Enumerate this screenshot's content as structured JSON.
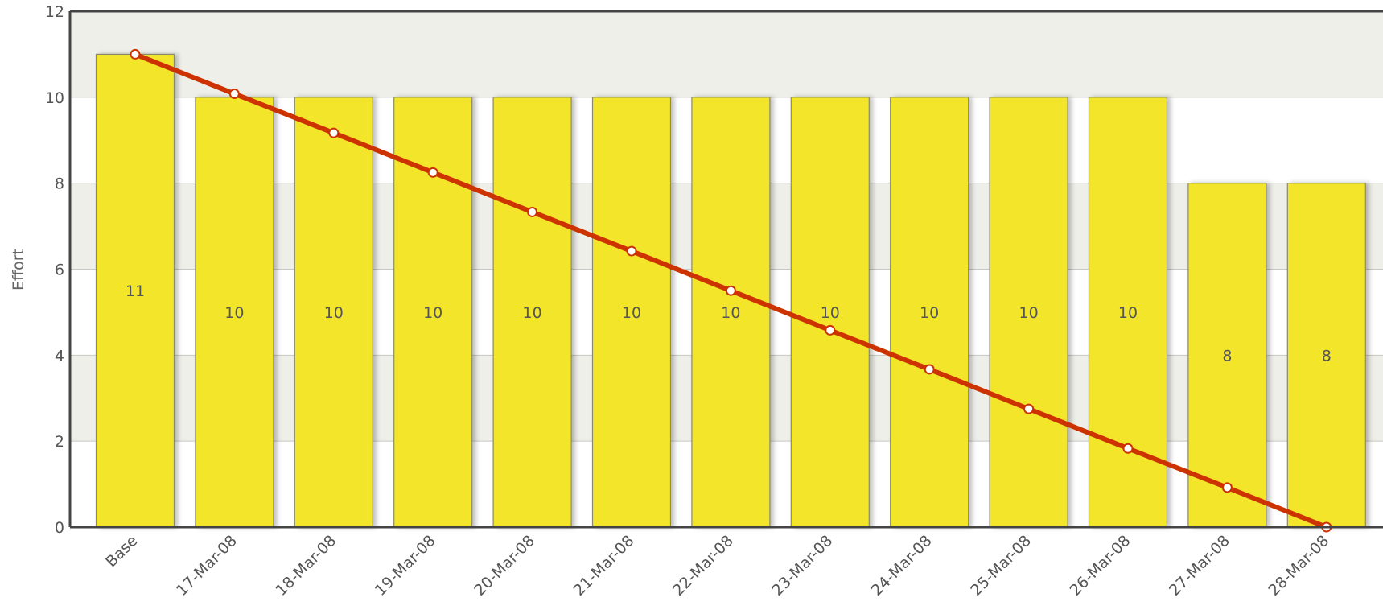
{
  "chart_data": {
    "type": "bar",
    "title": "",
    "xlabel": "",
    "ylabel": "Effort",
    "ylim": [
      0,
      12
    ],
    "yticks": [
      0,
      2,
      4,
      6,
      8,
      10,
      12
    ],
    "categories": [
      "Base",
      "17-Mar-08",
      "18-Mar-08",
      "19-Mar-08",
      "20-Mar-08",
      "21-Mar-08",
      "22-Mar-08",
      "23-Mar-08",
      "24-Mar-08",
      "25-Mar-08",
      "26-Mar-08",
      "27-Mar-08",
      "28-Mar-08"
    ],
    "series": [
      {
        "type": "bar",
        "values": [
          11,
          10,
          10,
          10,
          10,
          10,
          10,
          10,
          10,
          10,
          10,
          8,
          8
        ]
      },
      {
        "type": "line",
        "values": [
          11,
          10.08,
          9.17,
          8.25,
          7.33,
          6.42,
          5.5,
          4.58,
          3.67,
          2.75,
          1.83,
          0.92,
          0
        ]
      }
    ],
    "grid": true,
    "legend": "none",
    "colors": {
      "bar": "#f2e52c",
      "bar_stroke": "#8a8a6a",
      "line": "#cc3300",
      "band_dark": "#efefea",
      "band_light": "#ffffff",
      "axis": "#444444"
    }
  }
}
